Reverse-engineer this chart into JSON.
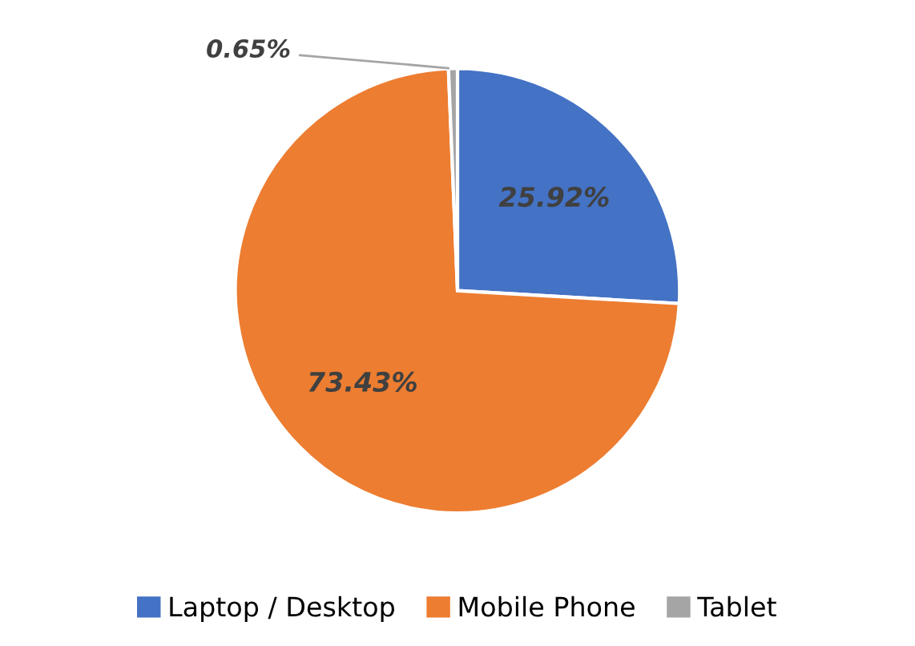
{
  "chart_data": {
    "type": "pie",
    "categories": [
      "Laptop / Desktop",
      "Mobile Phone",
      "Tablet"
    ],
    "values": [
      25.92,
      73.43,
      0.65
    ],
    "colors": [
      "#4472c4",
      "#ed7d31",
      "#a5a5a5"
    ],
    "value_labels": [
      "25.92%",
      "73.43%",
      "0.65%"
    ],
    "legend": "bottom"
  }
}
